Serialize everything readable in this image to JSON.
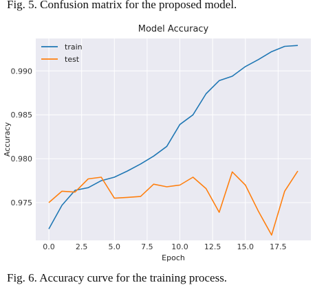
{
  "figure_caption_top": "Fig. 5. Confusion matrix for the proposed model.",
  "figure_caption_bottom": "Fig. 6. Accuracy curve for the training process.",
  "chart_data": {
    "type": "line",
    "title": "Model Accuracy",
    "xlabel": "Epoch",
    "ylabel": "Accuracy",
    "x": [
      0,
      1,
      2,
      3,
      4,
      5,
      6,
      7,
      8,
      9,
      10,
      11,
      12,
      13,
      14,
      15,
      16,
      17,
      18,
      19
    ],
    "series": [
      {
        "name": "train",
        "color": "#1f77b4",
        "values": [
          0.972,
          0.9747,
          0.9764,
          0.9767,
          0.9775,
          0.9779,
          0.9786,
          0.9794,
          0.9803,
          0.9814,
          0.9839,
          0.985,
          0.9874,
          0.9889,
          0.9894,
          0.9905,
          0.9913,
          0.9922,
          0.9928,
          0.9929
        ]
      },
      {
        "name": "test",
        "color": "#ff7f0e",
        "values": [
          0.975,
          0.9763,
          0.9762,
          0.9777,
          0.9779,
          0.9755,
          0.9756,
          0.9757,
          0.9771,
          0.9768,
          0.977,
          0.9779,
          0.9766,
          0.9739,
          0.9785,
          0.977,
          0.974,
          0.9713,
          0.9763,
          0.9786
        ]
      }
    ],
    "xlim": [
      -1,
      20
    ],
    "ylim": [
      0.9707,
      0.9937
    ],
    "xticks": [
      0.0,
      2.5,
      5.0,
      7.5,
      10.0,
      12.5,
      15.0,
      17.5
    ],
    "xtick_labels": [
      "0.0",
      "2.5",
      "5.0",
      "7.5",
      "10.0",
      "12.5",
      "15.0",
      "17.5"
    ],
    "yticks": [
      0.975,
      0.98,
      0.985,
      0.99
    ],
    "ytick_labels": [
      "0.975",
      "0.980",
      "0.985",
      "0.990"
    ],
    "grid": true,
    "legend_position": "top-left",
    "plot_background": "#eaeaf2"
  }
}
